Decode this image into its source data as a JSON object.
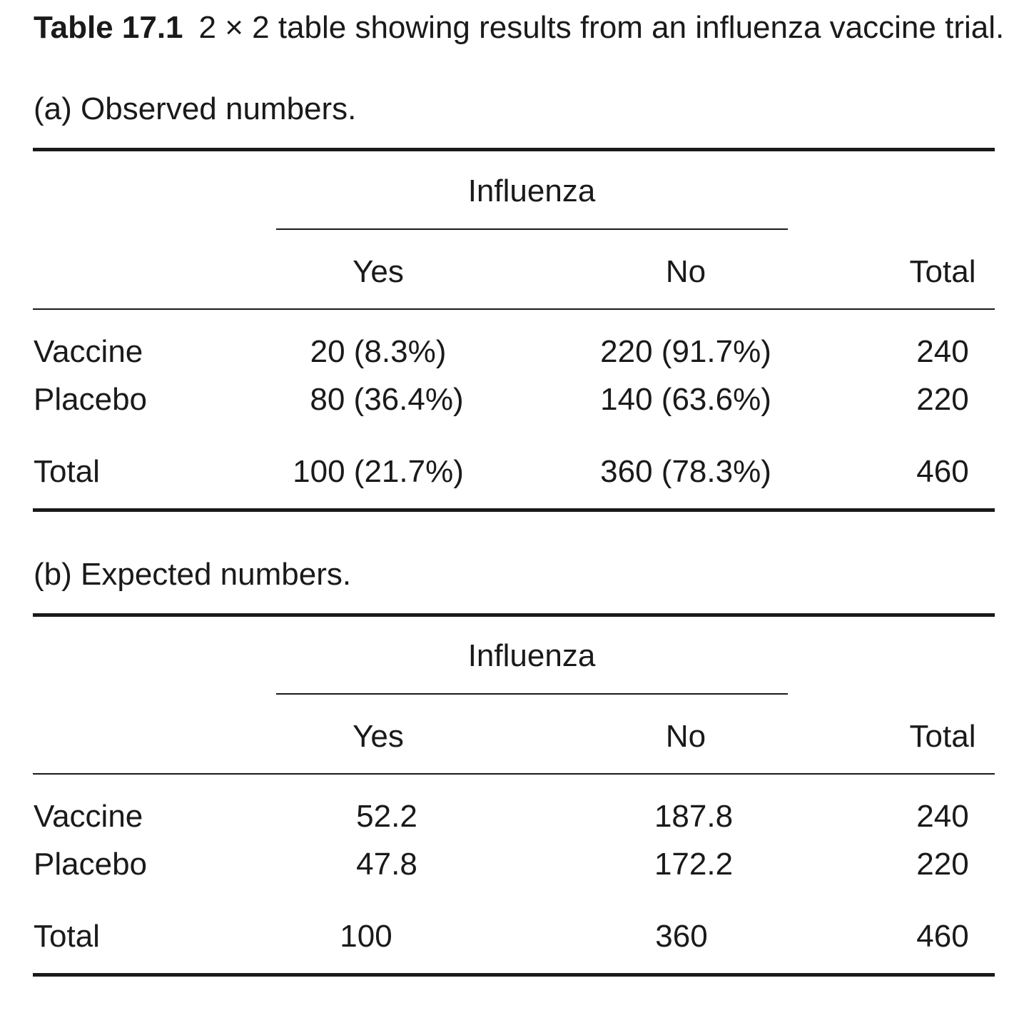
{
  "caption": {
    "label": "Table 17.1",
    "text": "2 × 2 table showing results from an influenza vaccine trial."
  },
  "tables": [
    {
      "subtitle": "(a) Observed numbers.",
      "group_header": "Influenza",
      "columns": [
        "Yes",
        "No",
        "Total"
      ],
      "rows": [
        {
          "label": "Vaccine",
          "yes": "20 (8.3%)",
          "no": "220 (91.7%)",
          "total": "240"
        },
        {
          "label": "Placebo",
          "yes": "80 (36.4%)",
          "no": "140 (63.6%)",
          "total": "220"
        },
        {
          "label": "Total",
          "yes": "100 (21.7%)",
          "no": "360 (78.3%)",
          "total": "460"
        }
      ]
    },
    {
      "subtitle": "(b) Expected numbers.",
      "group_header": "Influenza",
      "columns": [
        "Yes",
        "No",
        "Total"
      ],
      "rows": [
        {
          "label": "Vaccine",
          "yes": "52.2",
          "no": "187.8",
          "total": "240"
        },
        {
          "label": "Placebo",
          "yes": "47.8",
          "no": "172.2",
          "total": "220"
        },
        {
          "label": "Total",
          "yes": "100",
          "no": "360",
          "total": "460"
        }
      ]
    }
  ]
}
